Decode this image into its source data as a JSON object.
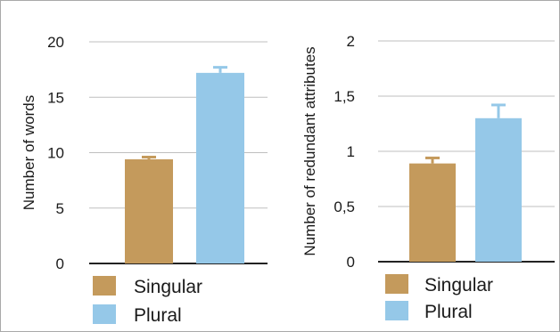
{
  "chart_data": [
    {
      "type": "bar",
      "categories": [
        "Singular",
        "Plural"
      ],
      "values": [
        9.4,
        17.2
      ],
      "errors": [
        0.2,
        0.5
      ],
      "colors": [
        "#c49a5c",
        "#95c8e8"
      ],
      "ylabel": "Number of words",
      "ylim": [
        0,
        20
      ],
      "yticks": [
        "0",
        "5",
        "10",
        "15",
        "20"
      ],
      "grid": true,
      "legend": [
        "Singular",
        "Plural"
      ],
      "legend_position": "bottom"
    },
    {
      "type": "bar",
      "categories": [
        "Singular",
        "Plural"
      ],
      "values": [
        0.89,
        1.3
      ],
      "errors": [
        0.05,
        0.12
      ],
      "colors": [
        "#c49a5c",
        "#95c8e8"
      ],
      "ylabel": "Number of redundant attributes",
      "ylim": [
        0,
        2
      ],
      "yticks": [
        "0",
        "0,5",
        "1",
        "1,5",
        "2"
      ],
      "grid": true,
      "legend": [
        "Singular",
        "Plural"
      ],
      "legend_position": "bottom"
    }
  ]
}
